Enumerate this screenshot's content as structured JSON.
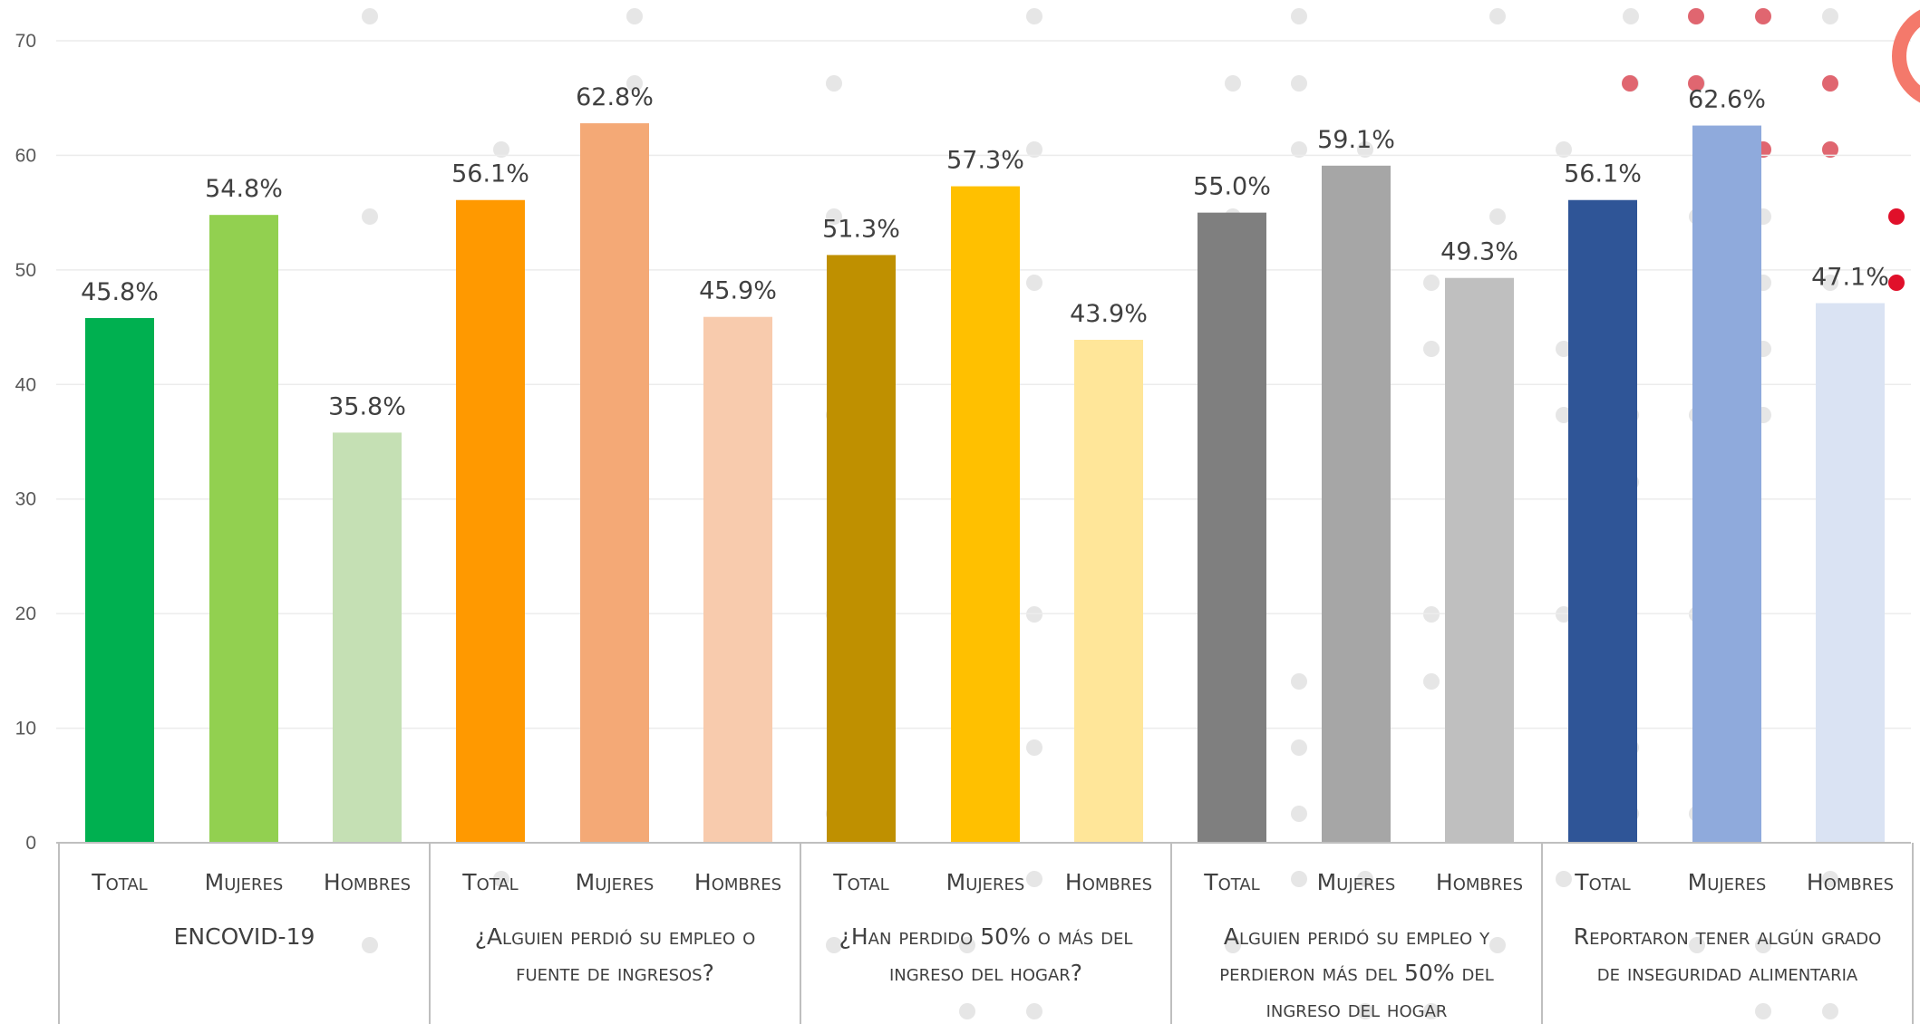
{
  "chart_data": {
    "type": "bar",
    "ylim": [
      0,
      70
    ],
    "yticks": [
      "0",
      "10",
      "20",
      "30",
      "40",
      "50",
      "60",
      "70"
    ],
    "grid": true,
    "groups": [
      {
        "label_lines": [
          "ENCOVID-19"
        ],
        "bars": [
          {
            "category": "Total",
            "value": 45.8,
            "label": "45.8%",
            "color": "#00b050"
          },
          {
            "category": "Mujeres",
            "value": 54.8,
            "label": "54.8%",
            "color": "#92d050"
          },
          {
            "category": "Hombres",
            "value": 35.8,
            "label": "35.8%",
            "color": "#c5e0b4"
          }
        ]
      },
      {
        "label_lines": [
          "¿Alguien perdió su empleo o",
          "fuente de ingresos?"
        ],
        "bars": [
          {
            "category": "Total",
            "value": 56.1,
            "label": "56.1%",
            "color": "#ff9900"
          },
          {
            "category": "Mujeres",
            "value": 62.8,
            "label": "62.8%",
            "color": "#f4a976"
          },
          {
            "category": "Hombres",
            "value": 45.9,
            "label": "45.9%",
            "color": "#f8cbad"
          }
        ]
      },
      {
        "label_lines": [
          "¿Han perdido 50% o más del",
          "ingreso del hogar?"
        ],
        "bars": [
          {
            "category": "Total",
            "value": 51.3,
            "label": "51.3%",
            "color": "#bf9000"
          },
          {
            "category": "Mujeres",
            "value": 57.3,
            "label": "57.3%",
            "color": "#ffc000"
          },
          {
            "category": "Hombres",
            "value": 43.9,
            "label": "43.9%",
            "color": "#ffe699"
          }
        ]
      },
      {
        "label_lines": [
          "Alguien peridó su empleo y",
          "perdieron más del 50% del",
          "ingreso del hogar"
        ],
        "bars": [
          {
            "category": "Total",
            "value": 55.0,
            "label": "55.0%",
            "color": "#7f7f7f"
          },
          {
            "category": "Mujeres",
            "value": 59.1,
            "label": "59.1%",
            "color": "#a6a6a6"
          },
          {
            "category": "Hombres",
            "value": 49.3,
            "label": "49.3%",
            "color": "#bfbfbf"
          }
        ]
      },
      {
        "label_lines": [
          "Reportaron tener algún grado",
          "de inseguridad alimentaria"
        ],
        "bars": [
          {
            "category": "Total",
            "value": 56.1,
            "label": "56.1%",
            "color": "#2f5597"
          },
          {
            "category": "Mujeres",
            "value": 62.6,
            "label": "62.6%",
            "color": "#8faadc"
          },
          {
            "category": "Hombres",
            "value": 47.1,
            "label": "47.1%",
            "color": "#dae3f3"
          }
        ]
      }
    ]
  }
}
